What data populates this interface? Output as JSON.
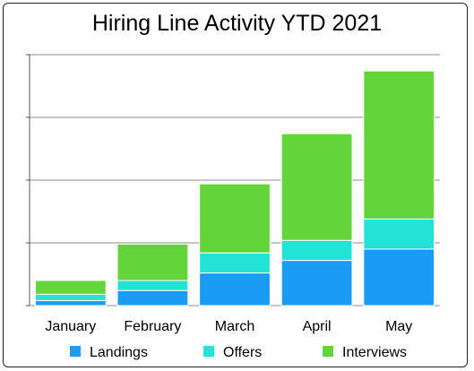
{
  "chart_data": {
    "type": "bar",
    "stacked": true,
    "title": "Hiring Line Activity YTD 2021",
    "xlabel": "",
    "ylabel": "",
    "categories": [
      "January",
      "February",
      "March",
      "April",
      "May"
    ],
    "series": [
      {
        "name": "Landings",
        "color": "#1a9cf5",
        "values": [
          4,
          12,
          26,
          36,
          45
        ]
      },
      {
        "name": "Offers",
        "color": "#22e3d6",
        "values": [
          5,
          8,
          16,
          16,
          24
        ]
      },
      {
        "name": "Interviews",
        "color": "#63d53a",
        "values": [
          11,
          29,
          55,
          85,
          118
        ]
      }
    ],
    "ylim": [
      0,
      200
    ],
    "y_ticks_labeled": false,
    "grid": true,
    "legend": "bottom"
  }
}
